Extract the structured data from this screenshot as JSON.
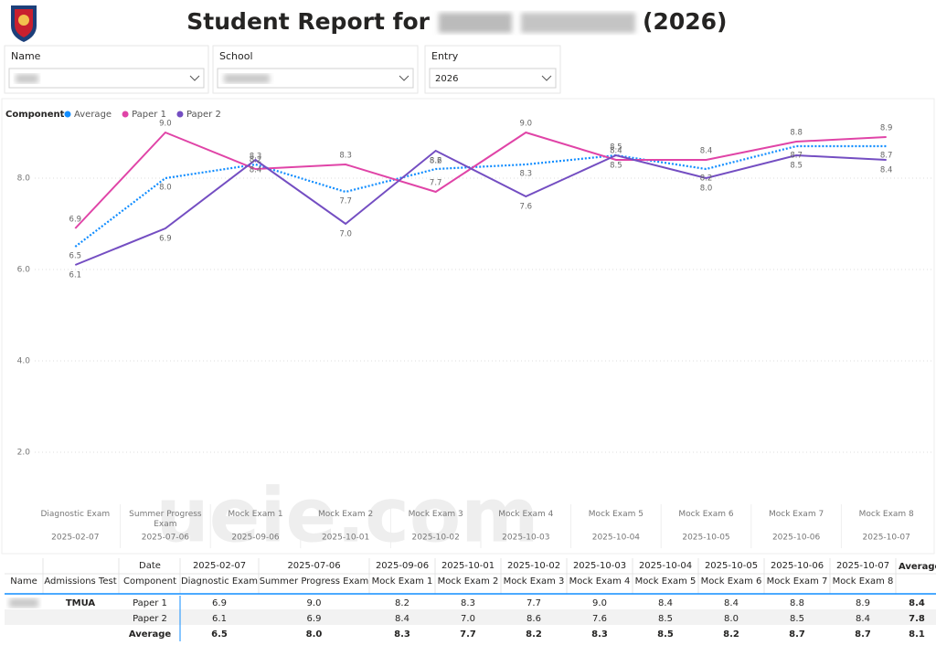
{
  "header": {
    "title_prefix": "Student Report for",
    "title_suffix": "(2026)"
  },
  "filters": [
    {
      "label": "Name"
    },
    {
      "label": "School"
    },
    {
      "label": "Entry",
      "value": "2026"
    }
  ],
  "watermark": "ueie.com",
  "chart_data": {
    "type": "line",
    "legend_title": "Component",
    "legend_position": "top-left",
    "grid": true,
    "categories": [
      "Diagnostic Exam",
      "Summer Progress Exam",
      "Mock Exam 1",
      "Mock Exam 2",
      "Mock Exam 3",
      "Mock Exam 4",
      "Mock Exam 5",
      "Mock Exam 6",
      "Mock Exam 7",
      "Mock Exam 8"
    ],
    "dates": [
      "2025-02-07",
      "2025-07-06",
      "2025-09-06",
      "2025-10-01",
      "2025-10-02",
      "2025-10-03",
      "2025-10-04",
      "2025-10-05",
      "2025-10-06",
      "2025-10-07"
    ],
    "series": [
      {
        "name": "Average",
        "color": "#118dff",
        "style": "dotted",
        "values": [
          6.5,
          8.0,
          8.3,
          7.7,
          8.2,
          8.3,
          8.5,
          8.2,
          8.7,
          8.7
        ],
        "value_labels": [
          "6.5",
          "8.0",
          "8.3",
          "7.7",
          "8.2",
          "8.3",
          "8.5",
          "8.2",
          "8.7",
          "8.7"
        ]
      },
      {
        "name": "Paper 1",
        "color": "#e044a7",
        "style": "solid",
        "values": [
          6.9,
          9.0,
          8.2,
          8.3,
          7.7,
          9.0,
          8.4,
          8.4,
          8.8,
          8.9
        ],
        "value_labels": [
          "6.9",
          "9.0",
          "8.2",
          "8.3",
          "7.7",
          "9.0",
          "8.4",
          "8.4",
          "8.8",
          "8.9"
        ]
      },
      {
        "name": "Paper 2",
        "color": "#744ec2",
        "style": "solid",
        "values": [
          6.1,
          6.9,
          8.4,
          7.0,
          8.6,
          7.6,
          8.5,
          8.0,
          8.5,
          8.4
        ],
        "value_labels": [
          "6.1",
          "6.9",
          "8.4",
          "7.0",
          "8.6",
          "7.6",
          "8.5",
          "8.0",
          "8.5",
          "8.4"
        ]
      }
    ],
    "ylim": [
      1,
      9.3
    ],
    "yticks": [
      {
        "value": 2,
        "label": "2.0"
      },
      {
        "value": 4,
        "label": "4.0"
      },
      {
        "value": 6,
        "label": "6.0"
      },
      {
        "value": 8,
        "label": "8.0"
      }
    ]
  },
  "table": {
    "date_header": "Date",
    "name_header": "Name",
    "test_header": "Admissions Test",
    "component_header": "Component",
    "total_header": "Average",
    "test": "TMUA",
    "row_totals": [
      "8.4",
      "7.8",
      "8.1"
    ]
  }
}
